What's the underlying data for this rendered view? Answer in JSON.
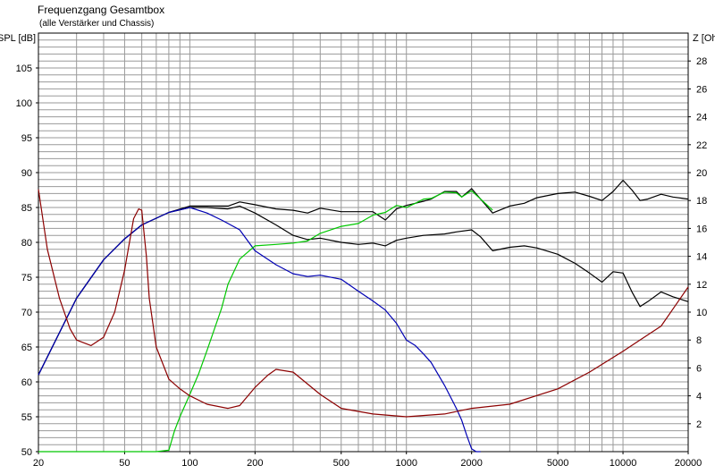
{
  "chart_data": {
    "type": "line",
    "title": "Frequenzgang Gesamtbox",
    "subtitle": "(alle Verstärker und Chassis)",
    "ylabel": "SPL [dB]",
    "y2label": "Z [Ohm]",
    "x_scale": "log",
    "xlim": [
      20,
      20000
    ],
    "ylim": [
      50,
      110
    ],
    "y2lim": [
      0,
      30
    ],
    "grid": true,
    "x_ticks": [
      20,
      50,
      100,
      200,
      500,
      1000,
      2000,
      5000,
      10000,
      20000
    ],
    "x_tick_labels": [
      "20",
      "50",
      "100",
      "200",
      "500",
      "1000",
      "2000",
      "5000",
      "10000",
      "20000"
    ],
    "y_ticks": [
      50,
      55,
      60,
      65,
      70,
      75,
      80,
      85,
      90,
      95,
      100,
      105
    ],
    "y2_ticks": [
      2,
      4,
      6,
      8,
      10,
      12,
      14,
      16,
      18,
      20,
      22,
      24,
      26,
      28
    ],
    "series": [
      {
        "color": "#000000",
        "axis": "left",
        "x": [
          20,
          30,
          40,
          50,
          60,
          80,
          100,
          120,
          150,
          170,
          200,
          250,
          300,
          350,
          400,
          500,
          600,
          700,
          800,
          900,
          1000,
          1100,
          1200,
          1300,
          1500,
          1700,
          1800,
          2000,
          2200,
          2500,
          3000,
          3500,
          4000,
          5000,
          6000,
          7000,
          8000,
          9000,
          10000,
          11000,
          12000,
          13000,
          15000,
          17000,
          20000
        ],
        "y": [
          61,
          72,
          77.5,
          80.5,
          82.5,
          84.3,
          85.2,
          85.2,
          85.2,
          85.8,
          85.4,
          84.8,
          84.6,
          84.2,
          84.9,
          84.4,
          84.4,
          84.4,
          83.2,
          84.8,
          85.3,
          85.6,
          85.9,
          86.2,
          87.3,
          87.3,
          86.5,
          87.7,
          86.2,
          84.2,
          85.2,
          85.6,
          86.4,
          87.0,
          87.2,
          86.6,
          86.0,
          87.3,
          88.9,
          87.5,
          86.0,
          86.2,
          86.9,
          86.5,
          86.2
        ]
      },
      {
        "color": "#000000",
        "axis": "left",
        "x": [
          20,
          30,
          40,
          50,
          60,
          80,
          100,
          120,
          150,
          170,
          200,
          250,
          300,
          350,
          400,
          500,
          600,
          700,
          800,
          900,
          1000,
          1200,
          1500,
          1700,
          2000,
          2200,
          2500,
          3000,
          3500,
          4000,
          5000,
          6000,
          7000,
          8000,
          9000,
          10000,
          11000,
          12000,
          13000,
          15000,
          17000,
          20000
        ],
        "y": [
          61,
          72,
          77.5,
          80.5,
          82.5,
          84.3,
          85.0,
          85.0,
          84.8,
          85.2,
          84.2,
          82.5,
          81.0,
          80.4,
          80.6,
          80.0,
          79.7,
          79.9,
          79.5,
          80.3,
          80.6,
          81.0,
          81.2,
          81.5,
          81.8,
          80.8,
          78.8,
          79.3,
          79.5,
          79.2,
          78.3,
          77.0,
          75.6,
          74.3,
          75.8,
          75.6,
          72.9,
          70.8,
          71.5,
          72.9,
          72.2,
          71.5
        ]
      },
      {
        "color": "#0000b4",
        "axis": "left",
        "x": [
          20,
          30,
          40,
          50,
          60,
          80,
          100,
          120,
          140,
          150,
          170,
          200,
          250,
          300,
          350,
          400,
          500,
          600,
          700,
          800,
          900,
          1000,
          1100,
          1200,
          1300,
          1500,
          1700,
          1800,
          1900,
          2000,
          2100,
          2200
        ],
        "y": [
          61,
          72,
          77.5,
          80.5,
          82.5,
          84.3,
          85.0,
          84.2,
          83.2,
          82.7,
          81.8,
          78.8,
          76.8,
          75.5,
          75.1,
          75.3,
          74.7,
          73.0,
          71.6,
          70.3,
          68.4,
          66.0,
          65.2,
          64.0,
          62.8,
          59.5,
          56.2,
          54.5,
          52.3,
          50.4,
          50.0,
          50.0
        ]
      },
      {
        "color": "#00c800",
        "axis": "left",
        "x": [
          20,
          50,
          70,
          80,
          85,
          90,
          100,
          110,
          120,
          140,
          150,
          170,
          200,
          250,
          300,
          350,
          400,
          500,
          600,
          700,
          800,
          900,
          1000,
          1100,
          1200,
          1300,
          1500,
          1700,
          1800,
          2000,
          2200,
          2500
        ],
        "y": [
          50,
          50,
          50,
          50.2,
          53,
          55,
          58.2,
          61.2,
          64.5,
          70.5,
          74.0,
          77.6,
          79.5,
          79.7,
          79.9,
          80.2,
          81.3,
          82.3,
          82.7,
          83.9,
          84.3,
          85.3,
          85.0,
          85.6,
          86.2,
          86.3,
          87.2,
          87.1,
          86.5,
          87.4,
          86.2,
          84.6
        ]
      },
      {
        "color": "#8c0000",
        "axis": "right",
        "x": [
          20,
          22,
          25,
          28,
          30,
          35,
          40,
          45,
          50,
          55,
          58,
          60,
          63,
          65,
          70,
          80,
          90,
          100,
          120,
          150,
          170,
          200,
          230,
          250,
          300,
          400,
          500,
          700,
          1000,
          1500,
          2000,
          3000,
          5000,
          7000,
          10000,
          15000,
          20000
        ],
        "y": [
          18.8,
          14.5,
          11.0,
          8.8,
          8.0,
          7.6,
          8.2,
          10.0,
          13.0,
          16.7,
          17.4,
          17.3,
          14.0,
          11.0,
          7.5,
          5.2,
          4.5,
          4.0,
          3.4,
          3.1,
          3.3,
          4.6,
          5.5,
          5.9,
          5.7,
          4.1,
          3.1,
          2.7,
          2.5,
          2.7,
          3.1,
          3.4,
          4.5,
          5.7,
          7.2,
          9.0,
          11.8
        ]
      }
    ]
  }
}
